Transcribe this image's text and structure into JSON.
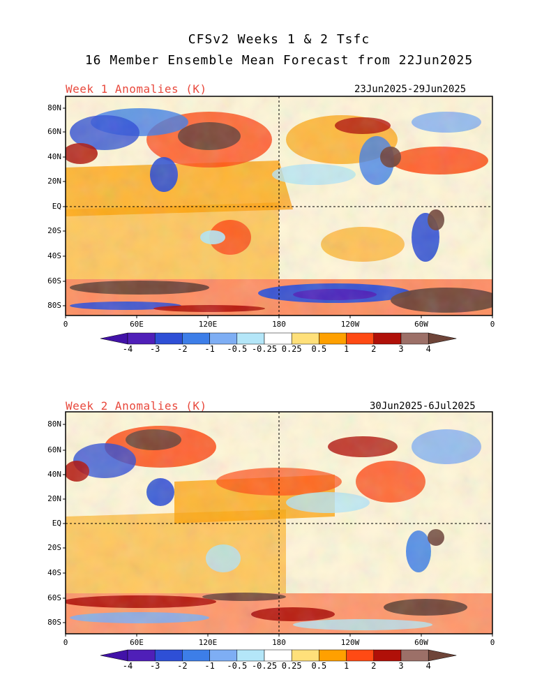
{
  "title": {
    "line1": "CFSv2 Weeks 1 & 2 Tsfc",
    "line2": "16 Member Ensemble Mean Forecast from 22Jun2025"
  },
  "panels": [
    {
      "label": "Week 1 Anomalies (K)",
      "dates": "23Jun2025-29Jun2025"
    },
    {
      "label": "Week 2 Anomalies (K)",
      "dates": "30Jun2025-6Jul2025"
    }
  ],
  "lat_labels": [
    "80N",
    "60N",
    "40N",
    "20N",
    "EQ",
    "20S",
    "40S",
    "60S",
    "80S"
  ],
  "lon_labels": [
    "0",
    "60E",
    "120E",
    "180",
    "120W",
    "60W",
    "0"
  ],
  "colorbar": {
    "labels": [
      "-4",
      "-3",
      "-2",
      "-1",
      "-0.5",
      "-0.25",
      "0.25",
      "0.5",
      "1",
      "2",
      "3",
      "4"
    ],
    "colors": [
      "#4f1fb8",
      "#2e4fd6",
      "#3d7ee8",
      "#7eaef4",
      "#b4e6f8",
      "#ffffff",
      "#ffe07a",
      "#ffa000",
      "#ff4a14",
      "#b01008",
      "#9c7068"
    ],
    "min_color": "#4212a8",
    "max_color": "#6e4438"
  }
}
